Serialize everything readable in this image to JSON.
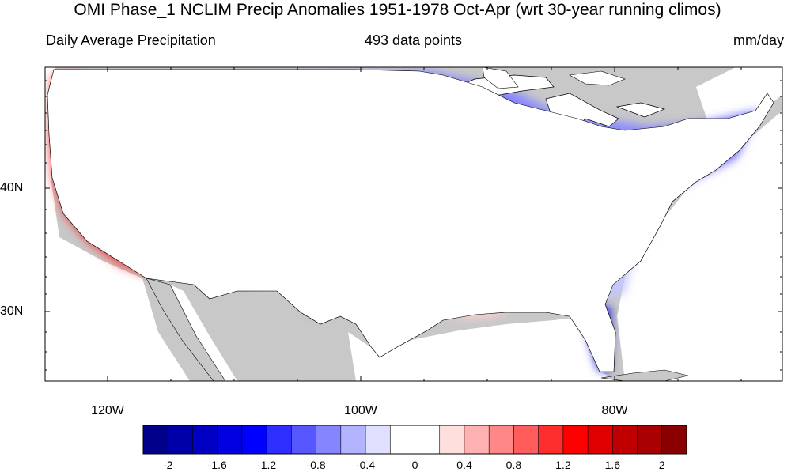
{
  "header": {
    "title": "OMI Phase_1 NCLIM Precip Anomalies 1951-1978 Oct-Apr (wrt 30-year running climos)",
    "left": "Daily Average Precipitation",
    "center": "493 data points",
    "right": "mm/day"
  },
  "axes": {
    "lat_labels": [
      "40N",
      "30N"
    ],
    "lon_labels": [
      "120W",
      "100W",
      "80W"
    ]
  },
  "colorbar": {
    "colors": [
      "#00008a",
      "#0000a8",
      "#0000c4",
      "#0000e0",
      "#0000ff",
      "#2e2eff",
      "#5757ff",
      "#8585ff",
      "#b3b3ff",
      "#e0e0ff",
      "#ffffff",
      "#ffffff",
      "#ffdede",
      "#ffb0b0",
      "#ff8787",
      "#ff5c5c",
      "#ff2e2e",
      "#ff0000",
      "#e00000",
      "#c00000",
      "#a80000",
      "#8a0000"
    ],
    "tick_labels": [
      "-2",
      "-1.6",
      "-1.2",
      "-0.8",
      "-0.4",
      "0",
      "0.4",
      "0.8",
      "1.2",
      "1.6",
      "2"
    ]
  },
  "map_colors": {
    "land_outside": "#c8c8c8",
    "water": "#ffffff"
  }
}
